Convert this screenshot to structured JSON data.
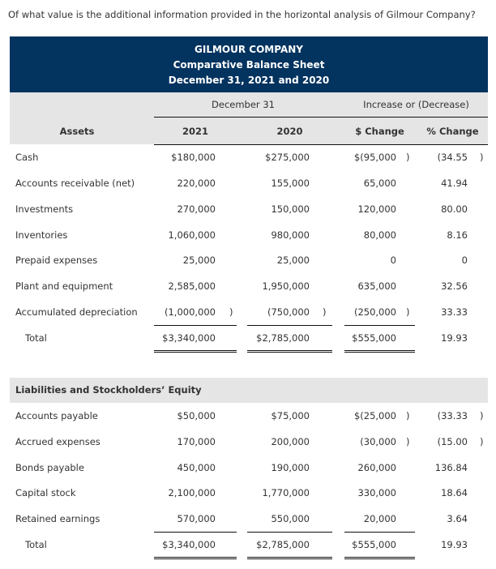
{
  "question": "Of what value is the additional information provided in the horizontal analysis of Gilmour Company?",
  "header": {
    "company": "GILMOUR COMPANY",
    "title": "Comparative Balance Sheet",
    "date": "December 31, 2021 and 2020"
  },
  "columns": {
    "group1": "December 31",
    "group2": "Increase or (Decrease)",
    "assets": "Assets",
    "y2021": "2021",
    "y2020": "2020",
    "dollar": "$ Change",
    "pct": "% Change"
  },
  "assets": [
    {
      "label": "Cash",
      "v2021": "$180,000",
      "v2020": "$275,000",
      "chg": "$(95,000",
      "chg_p": ")",
      "pct": "(34.55",
      "pct_p": ")"
    },
    {
      "label": "Accounts receivable (net)",
      "v2021": "220,000",
      "v2020": "155,000",
      "chg": "65,000",
      "pct": "41.94"
    },
    {
      "label": "Investments",
      "v2021": "270,000",
      "v2020": "150,000",
      "chg": "120,000",
      "pct": "80.00"
    },
    {
      "label": "Inventories",
      "v2021": "1,060,000",
      "v2020": "980,000",
      "chg": "80,000",
      "pct": "8.16"
    },
    {
      "label": "Prepaid expenses",
      "v2021": "25,000",
      "v2020": "25,000",
      "chg": "0",
      "pct": "0"
    },
    {
      "label": "Plant and equipment",
      "v2021": "2,585,000",
      "v2020": "1,950,000",
      "chg": "635,000",
      "pct": "32.56"
    },
    {
      "label": "Accumulated depreciation",
      "v2021": "(1,000,000",
      "v2021_p": ")",
      "v2020": "(750,000",
      "v2020_p": ")",
      "chg": "(250,000",
      "chg_p": ")",
      "pct": "33.33"
    },
    {
      "label": "Total",
      "v2021": "$3,340,000",
      "v2020": "$2,785,000",
      "chg": "$555,000",
      "pct": "19.93"
    }
  ],
  "liab_heading": "Liabilities and Stockholders’ Equity",
  "liabilities": [
    {
      "label": "Accounts payable",
      "v2021": "$50,000",
      "v2020": "$75,000",
      "chg": "$(25,000",
      "chg_p": ")",
      "pct": "(33.33",
      "pct_p": ")"
    },
    {
      "label": "Accrued expenses",
      "v2021": "170,000",
      "v2020": "200,000",
      "chg": "(30,000",
      "chg_p": ")",
      "pct": "(15.00",
      "pct_p": ")"
    },
    {
      "label": "Bonds payable",
      "v2021": "450,000",
      "v2020": "190,000",
      "chg": "260,000",
      "pct": "136.84"
    },
    {
      "label": "Capital stock",
      "v2021": "2,100,000",
      "v2020": "1,770,000",
      "chg": "330,000",
      "pct": "18.64"
    },
    {
      "label": "Retained earnings",
      "v2021": "570,000",
      "v2020": "550,000",
      "chg": "20,000",
      "pct": "3.64"
    },
    {
      "label": "Total",
      "v2021": "$3,340,000",
      "v2020": "$2,785,000",
      "chg": "$555,000",
      "pct": "19.93"
    }
  ]
}
